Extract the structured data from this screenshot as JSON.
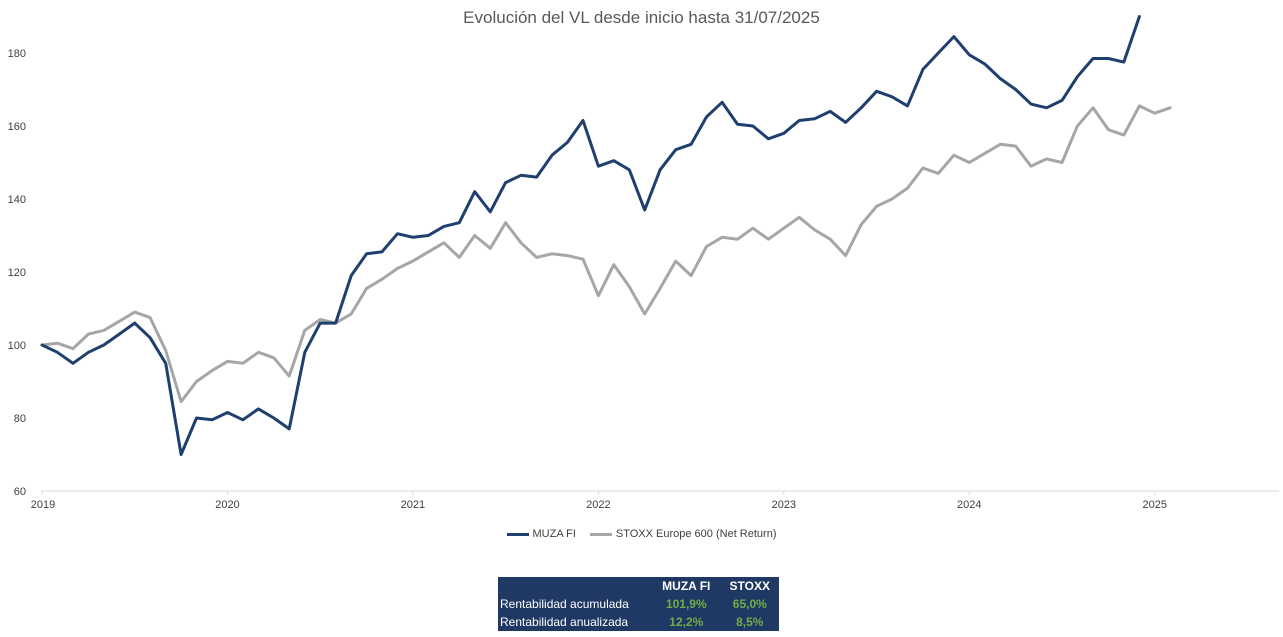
{
  "chart_data": {
    "type": "line",
    "title": "Evolución del VL desde inicio hasta 31/07/2025",
    "xlabel": "",
    "ylabel": "",
    "x_ticks": [
      "2019",
      "2020",
      "2021",
      "2022",
      "2023",
      "2024",
      "2025"
    ],
    "y_ticks": [
      "60",
      "80",
      "100",
      "120",
      "140",
      "160",
      "180"
    ],
    "ylim": [
      60,
      190
    ],
    "xlim": [
      2019.0,
      2025.67
    ],
    "grid": false,
    "legend_placement": "bottom",
    "series": [
      {
        "name": "MUZA FI",
        "color": "#1F3F6E",
        "x": [
          2019.0,
          2019.083,
          2019.167,
          2019.25,
          2019.333,
          2019.417,
          2019.5,
          2019.583,
          2019.667,
          2019.75,
          2019.833,
          2019.917,
          2020.0,
          2020.083,
          2020.167,
          2020.25,
          2020.333,
          2020.417,
          2020.5,
          2020.583,
          2020.667,
          2020.75,
          2020.833,
          2020.917,
          2021.0,
          2021.083,
          2021.167,
          2021.25,
          2021.333,
          2021.417,
          2021.5,
          2021.583,
          2021.667,
          2021.75,
          2021.833,
          2021.917,
          2022.0,
          2022.083,
          2022.167,
          2022.25,
          2022.333,
          2022.417,
          2022.5,
          2022.583,
          2022.667,
          2022.75,
          2022.833,
          2022.917,
          2023.0,
          2023.083,
          2023.167,
          2023.25,
          2023.333,
          2023.417,
          2023.5,
          2023.583,
          2023.667,
          2023.75,
          2023.833,
          2023.917,
          2024.0,
          2024.083,
          2024.167,
          2024.25,
          2024.333,
          2024.417,
          2024.5,
          2024.583,
          2024.667,
          2024.75,
          2024.833,
          2024.917
        ],
        "values": [
          100,
          98,
          95,
          98,
          100,
          103,
          106,
          102,
          95,
          70,
          80,
          79.5,
          81.5,
          79.5,
          82.5,
          80,
          77,
          98,
          106,
          106,
          119,
          125,
          125.5,
          130.5,
          129.5,
          130,
          132.5,
          133.5,
          142,
          136.5,
          144.5,
          146.5,
          146,
          152,
          155.5,
          161.5,
          149,
          150.5,
          148,
          137,
          148,
          153.5,
          155,
          162.5,
          166.5,
          160.5,
          160,
          156.5,
          158,
          161.5,
          162,
          164,
          161,
          165,
          169.5,
          168,
          165.5,
          175.5,
          180,
          184.5,
          179.5,
          177,
          173,
          170,
          166,
          165,
          167,
          173.5,
          178.5,
          178.5,
          177.5,
          190
        ]
      },
      {
        "name": "STOXX Europe 600 (Net Return)",
        "color": "#A6A6A6",
        "x": [
          2019.0,
          2019.083,
          2019.167,
          2019.25,
          2019.333,
          2019.417,
          2019.5,
          2019.583,
          2019.667,
          2019.75,
          2019.833,
          2019.917,
          2020.0,
          2020.083,
          2020.167,
          2020.25,
          2020.333,
          2020.417,
          2020.5,
          2020.583,
          2020.667,
          2020.75,
          2020.833,
          2020.917,
          2021.0,
          2021.083,
          2021.167,
          2021.25,
          2021.333,
          2021.417,
          2021.5,
          2021.583,
          2021.667,
          2021.75,
          2021.833,
          2021.917,
          2022.0,
          2022.083,
          2022.167,
          2022.25,
          2022.333,
          2022.417,
          2022.5,
          2022.583,
          2022.667,
          2022.75,
          2022.833,
          2022.917,
          2023.0,
          2023.083,
          2023.167,
          2023.25,
          2023.333,
          2023.417,
          2023.5,
          2023.583,
          2023.667,
          2023.75,
          2023.833,
          2023.917,
          2024.0,
          2024.083,
          2024.167,
          2024.25,
          2024.333,
          2024.417,
          2024.5,
          2024.583,
          2024.667,
          2024.75,
          2024.833,
          2024.917,
          2025.0,
          2025.083
        ],
        "values": [
          100,
          100.5,
          99,
          103,
          104,
          106.5,
          109,
          107.5,
          98.5,
          84.5,
          90,
          93,
          95.5,
          95,
          98,
          96.5,
          91.5,
          104,
          107,
          106,
          108.5,
          115.5,
          118,
          121,
          123,
          125.5,
          128,
          124,
          130,
          126.5,
          133.5,
          128,
          124,
          125,
          124.5,
          123.5,
          113.5,
          122,
          116,
          108.5,
          115.5,
          123,
          119,
          127,
          129.5,
          129,
          132,
          129,
          132,
          135,
          131.5,
          129,
          124.5,
          133,
          138,
          140,
          143,
          148.5,
          147,
          152,
          150,
          152.5,
          155,
          154.5,
          149,
          151,
          150,
          160,
          165,
          159,
          157.5,
          165.5,
          163.5,
          165
        ]
      }
    ]
  },
  "legend": {
    "items": [
      {
        "label": "MUZA FI",
        "color": "#1F3F6E"
      },
      {
        "label": "STOXX Europe 600 (Net Return)",
        "color": "#A6A6A6"
      }
    ]
  },
  "stats_table": {
    "headers": [
      "",
      "MUZA FI",
      "STOXX"
    ],
    "rows": [
      {
        "label": "Rentabilidad acumulada",
        "muza": "101,9%",
        "stoxx": "65,0%"
      },
      {
        "label": "Rentabilidad anualizada",
        "muza": "12,2%",
        "stoxx": "8,5%"
      }
    ],
    "background": "#203864",
    "value_color": "#70AD47"
  }
}
